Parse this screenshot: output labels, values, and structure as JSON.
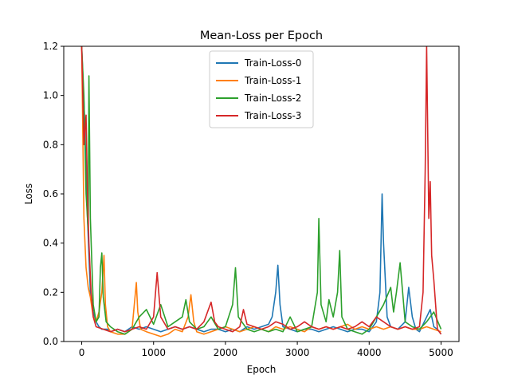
{
  "chart_data": {
    "type": "line",
    "title": "Mean-Loss per Epoch",
    "xlabel": "Epoch",
    "ylabel": "Loss",
    "xlim": [
      -250,
      5250
    ],
    "ylim": [
      0,
      1.2
    ],
    "xticks": [
      0,
      1000,
      2000,
      3000,
      4000,
      5000
    ],
    "yticks": [
      0.0,
      0.2,
      0.4,
      0.6,
      0.8,
      1.0,
      1.2
    ],
    "xtick_labels": [
      "0",
      "1000",
      "2000",
      "3000",
      "4000",
      "5000"
    ],
    "ytick_labels": [
      "0.0",
      "0.2",
      "0.4",
      "0.6",
      "0.8",
      "1.0",
      "1.2"
    ],
    "grid": false,
    "legend_position": "top-center",
    "series": [
      {
        "name": "Train-Loss-0",
        "color": "#1f77b4",
        "x": [
          0,
          40,
          80,
          120,
          160,
          200,
          240,
          280,
          320,
          360,
          400,
          500,
          600,
          700,
          800,
          900,
          1000,
          1100,
          1200,
          1300,
          1400,
          1500,
          1600,
          1700,
          1800,
          1900,
          2000,
          2100,
          2200,
          2300,
          2400,
          2500,
          2600,
          2650,
          2700,
          2730,
          2760,
          2800,
          2900,
          3000,
          3100,
          3200,
          3300,
          3400,
          3500,
          3600,
          3700,
          3800,
          3900,
          4000,
          4100,
          4150,
          4180,
          4200,
          4250,
          4300,
          4400,
          4500,
          4550,
          4600,
          4650,
          4700,
          4800,
          4850,
          4900,
          4950,
          5000
        ],
        "values": [
          1.2,
          0.9,
          0.5,
          0.2,
          0.12,
          0.08,
          0.06,
          0.05,
          0.05,
          0.05,
          0.04,
          0.05,
          0.04,
          0.06,
          0.05,
          0.06,
          0.05,
          0.04,
          0.05,
          0.06,
          0.05,
          0.06,
          0.05,
          0.04,
          0.05,
          0.05,
          0.04,
          0.05,
          0.04,
          0.06,
          0.05,
          0.06,
          0.07,
          0.1,
          0.2,
          0.31,
          0.15,
          0.06,
          0.05,
          0.04,
          0.05,
          0.05,
          0.04,
          0.05,
          0.06,
          0.05,
          0.04,
          0.05,
          0.05,
          0.04,
          0.08,
          0.2,
          0.6,
          0.4,
          0.1,
          0.06,
          0.05,
          0.08,
          0.22,
          0.1,
          0.05,
          0.04,
          0.1,
          0.13,
          0.06,
          0.05,
          0.03
        ]
      },
      {
        "name": "Train-Loss-1",
        "color": "#ff7f0e",
        "x": [
          0,
          30,
          60,
          90,
          120,
          160,
          200,
          240,
          280,
          310,
          330,
          360,
          400,
          500,
          600,
          700,
          760,
          780,
          820,
          900,
          1000,
          1100,
          1200,
          1300,
          1400,
          1480,
          1520,
          1560,
          1600,
          1700,
          1800,
          1900,
          2000,
          2100,
          2200,
          2300,
          2400,
          2500,
          2600,
          2700,
          2800,
          2900,
          3000,
          3100,
          3200,
          3300,
          3400,
          3500,
          3600,
          3700,
          3800,
          3900,
          4000,
          4100,
          4200,
          4300,
          4400,
          4500,
          4600,
          4700,
          4800,
          4900,
          5000
        ],
        "values": [
          1.2,
          0.5,
          0.3,
          0.22,
          0.18,
          0.1,
          0.08,
          0.12,
          0.2,
          0.35,
          0.15,
          0.06,
          0.04,
          0.03,
          0.03,
          0.05,
          0.24,
          0.12,
          0.05,
          0.04,
          0.03,
          0.02,
          0.03,
          0.05,
          0.04,
          0.1,
          0.19,
          0.08,
          0.04,
          0.03,
          0.04,
          0.05,
          0.06,
          0.05,
          0.04,
          0.05,
          0.06,
          0.05,
          0.04,
          0.06,
          0.05,
          0.06,
          0.05,
          0.04,
          0.06,
          0.05,
          0.06,
          0.05,
          0.06,
          0.07,
          0.05,
          0.06,
          0.05,
          0.06,
          0.05,
          0.06,
          0.05,
          0.06,
          0.05,
          0.05,
          0.06,
          0.05,
          0.04
        ]
      },
      {
        "name": "Train-Loss-2",
        "color": "#2ca02c",
        "x": [
          0,
          30,
          60,
          90,
          100,
          120,
          160,
          200,
          240,
          260,
          280,
          300,
          340,
          400,
          500,
          600,
          700,
          800,
          900,
          1000,
          1100,
          1200,
          1300,
          1400,
          1450,
          1500,
          1600,
          1700,
          1800,
          1900,
          2000,
          2100,
          2140,
          2180,
          2300,
          2400,
          2500,
          2600,
          2700,
          2800,
          2900,
          3000,
          3100,
          3200,
          3280,
          3300,
          3330,
          3400,
          3440,
          3500,
          3560,
          3590,
          3620,
          3700,
          3800,
          3900,
          4000,
          4100,
          4200,
          4300,
          4340,
          4380,
          4430,
          4480,
          4500,
          4600,
          4700,
          4800,
          4900,
          5000
        ],
        "values": [
          1.2,
          1.0,
          0.6,
          0.45,
          1.08,
          0.5,
          0.15,
          0.08,
          0.1,
          0.3,
          0.36,
          0.18,
          0.08,
          0.06,
          0.04,
          0.03,
          0.05,
          0.1,
          0.13,
          0.07,
          0.15,
          0.06,
          0.08,
          0.1,
          0.17,
          0.08,
          0.05,
          0.06,
          0.1,
          0.05,
          0.06,
          0.15,
          0.3,
          0.1,
          0.05,
          0.04,
          0.05,
          0.04,
          0.05,
          0.04,
          0.1,
          0.04,
          0.05,
          0.06,
          0.2,
          0.5,
          0.15,
          0.08,
          0.17,
          0.1,
          0.2,
          0.37,
          0.1,
          0.05,
          0.04,
          0.03,
          0.05,
          0.1,
          0.15,
          0.22,
          0.12,
          0.2,
          0.32,
          0.15,
          0.08,
          0.06,
          0.05,
          0.08,
          0.12,
          0.05
        ]
      },
      {
        "name": "Train-Loss-3",
        "color": "#d62728",
        "x": [
          0,
          30,
          60,
          80,
          100,
          130,
          160,
          200,
          300,
          400,
          500,
          600,
          700,
          800,
          900,
          1000,
          1050,
          1100,
          1200,
          1300,
          1400,
          1500,
          1600,
          1700,
          1800,
          1850,
          1900,
          2000,
          2100,
          2200,
          2250,
          2300,
          2400,
          2500,
          2600,
          2700,
          2800,
          2900,
          3000,
          3100,
          3200,
          3300,
          3400,
          3500,
          3600,
          3700,
          3800,
          3900,
          4000,
          4100,
          4200,
          4300,
          4400,
          4500,
          4600,
          4700,
          4750,
          4780,
          4800,
          4830,
          4850,
          4870,
          4900,
          4950,
          5000
        ],
        "values": [
          1.2,
          0.8,
          0.92,
          0.6,
          0.4,
          0.2,
          0.1,
          0.06,
          0.05,
          0.04,
          0.05,
          0.04,
          0.05,
          0.06,
          0.05,
          0.1,
          0.28,
          0.1,
          0.05,
          0.06,
          0.05,
          0.06,
          0.05,
          0.08,
          0.16,
          0.08,
          0.06,
          0.05,
          0.04,
          0.06,
          0.13,
          0.07,
          0.06,
          0.05,
          0.06,
          0.08,
          0.07,
          0.05,
          0.06,
          0.08,
          0.06,
          0.05,
          0.06,
          0.05,
          0.06,
          0.05,
          0.06,
          0.08,
          0.06,
          0.1,
          0.08,
          0.06,
          0.05,
          0.06,
          0.05,
          0.06,
          0.2,
          0.7,
          1.2,
          0.5,
          0.65,
          0.35,
          0.25,
          0.05,
          0.03
        ]
      }
    ]
  }
}
